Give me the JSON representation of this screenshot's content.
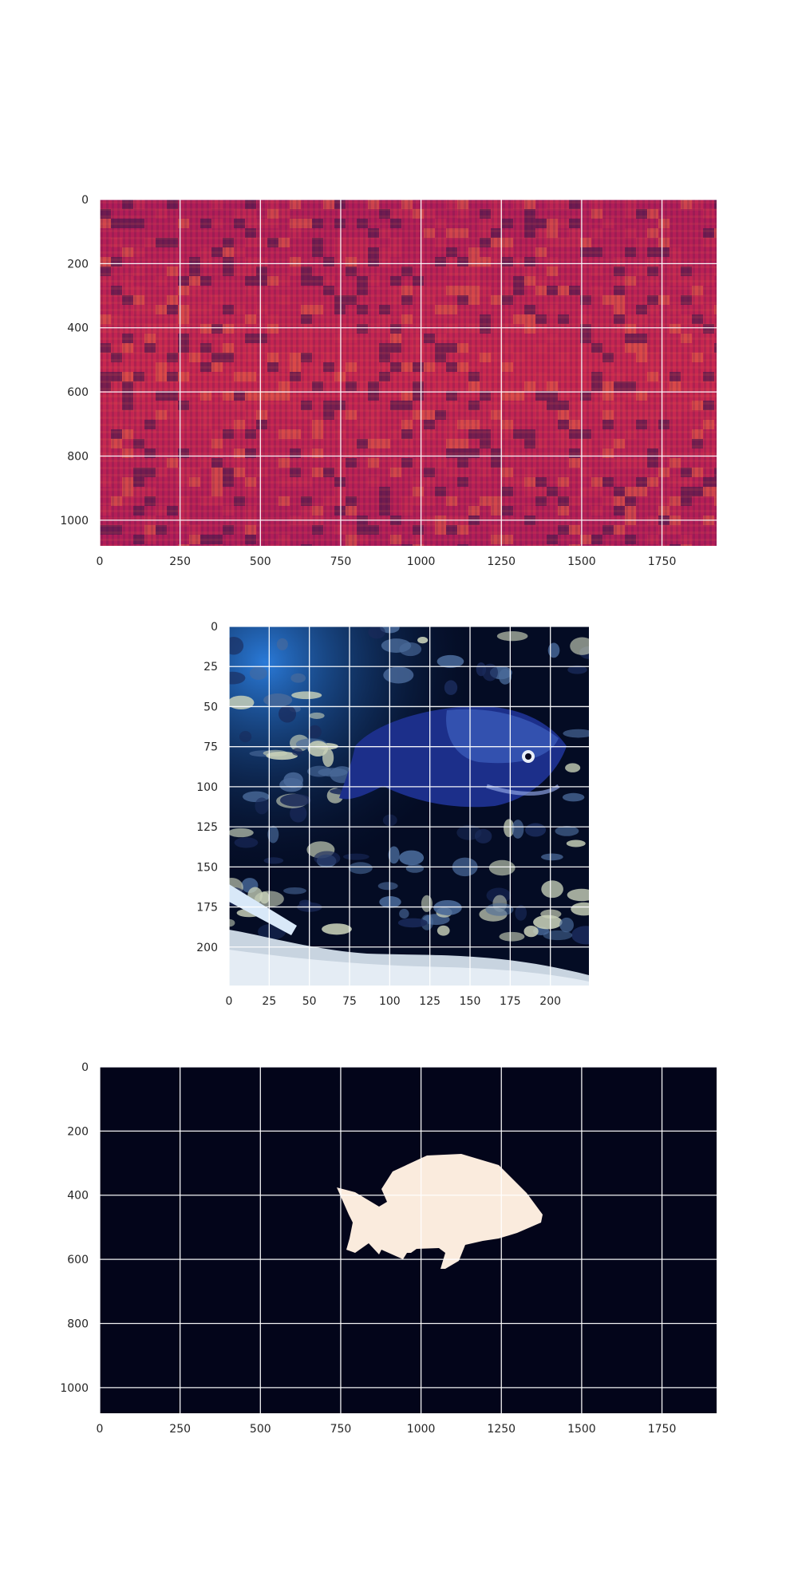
{
  "chart_data": [
    {
      "type": "heatmap",
      "content": "noise-texture",
      "colormap": "rocket",
      "grid": true,
      "xlim": [
        0,
        1920
      ],
      "ylim": [
        1080,
        0
      ],
      "xticks": [
        0,
        250,
        500,
        750,
        1000,
        1250,
        1500,
        1750
      ],
      "yticks": [
        0,
        200,
        400,
        600,
        800,
        1000
      ],
      "colors": [
        "#3a1a4a",
        "#a0185a",
        "#d03050",
        "#f07040"
      ]
    },
    {
      "type": "image",
      "content": "blue fish swimming over dark rocky reef with pale sandy bottom",
      "grid": true,
      "xlim": [
        0,
        224
      ],
      "ylim": [
        224,
        0
      ],
      "xticks": [
        0,
        25,
        50,
        75,
        100,
        125,
        150,
        175,
        200
      ],
      "yticks": [
        0,
        25,
        50,
        75,
        100,
        125,
        150,
        175,
        200
      ],
      "colors": [
        "#05102a",
        "#2a4aa0",
        "#c8d0c0",
        "#d8e0f0"
      ]
    },
    {
      "type": "heatmap",
      "content": "binary segmentation mask of the fish",
      "colormap": "rocket",
      "grid": true,
      "xlim": [
        0,
        1920
      ],
      "ylim": [
        1080,
        0
      ],
      "xticks": [
        0,
        250,
        500,
        750,
        1000,
        1250,
        1500,
        1750
      ],
      "yticks": [
        0,
        200,
        400,
        600,
        800,
        1000
      ],
      "colors": [
        "#03051a",
        "#faebdd"
      ]
    }
  ]
}
